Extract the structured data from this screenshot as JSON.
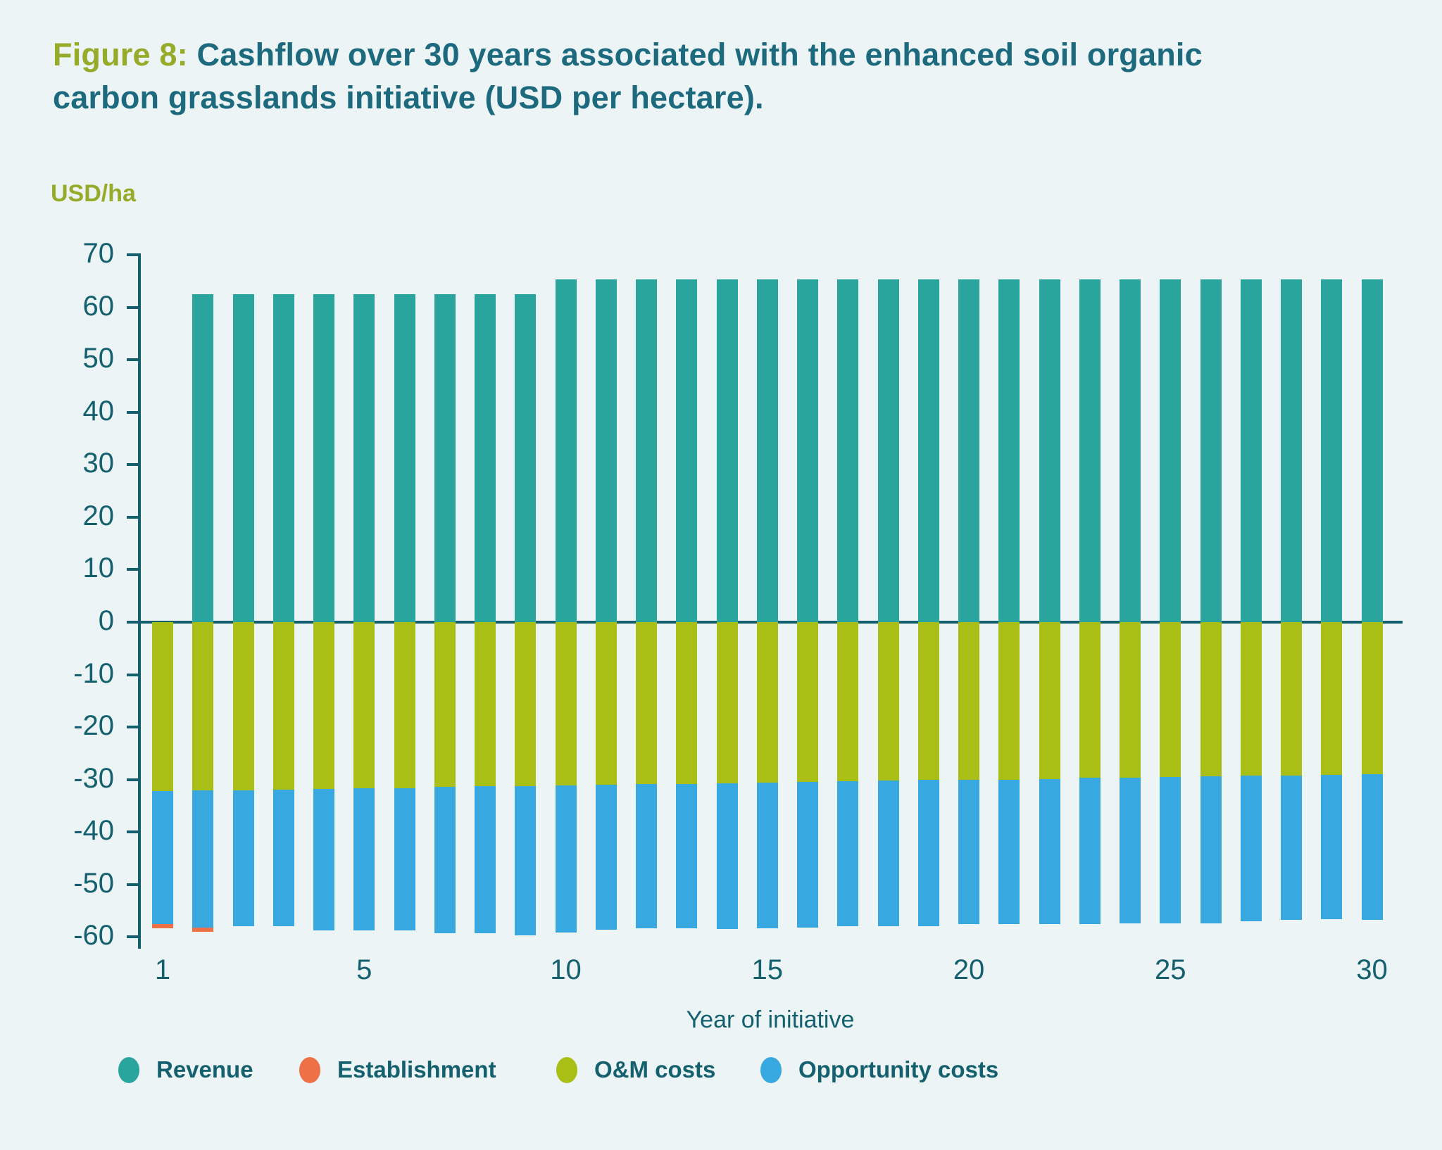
{
  "figure": {
    "label": "Figure 8:",
    "title_rest": " Cashflow over 30 years associated with the enhanced soil organic carbon grasslands initiative (USD per hectare).",
    "y_axis_unit": "USD/ha",
    "x_axis_label": "Year of initiative"
  },
  "colors": {
    "background": "#ecf4f5",
    "title_teal": "#1d6a7e",
    "accent_olive": "#96ab2a",
    "axis_text": "#14606f",
    "zero_line": "#135f6e",
    "revenue": "#29a59d",
    "establishment": "#ed7047",
    "om_costs": "#a9bf16",
    "opportunity_costs": "#38a8e0"
  },
  "chart_data": {
    "type": "bar",
    "stacked": true,
    "title": "Cashflow over 30 years associated with the enhanced soil organic carbon grasslands initiative (USD per hectare)",
    "ylabel": "USD/ha",
    "xlabel": "Year of initiative",
    "ylim": [
      -60,
      70
    ],
    "y_ticks": [
      70,
      60,
      50,
      40,
      30,
      20,
      10,
      0,
      -10,
      -20,
      -30,
      -40,
      -50,
      -60
    ],
    "n_bars": 31,
    "x_tick_labels": [
      "1",
      "5",
      "10",
      "15",
      "20",
      "25",
      "30"
    ],
    "x_tick_bar_positions": [
      1,
      6,
      11,
      16,
      21,
      26,
      31
    ],
    "grid": false,
    "legend_position": "bottom",
    "stack_order_below_zero": [
      "O&M costs",
      "Opportunity costs",
      "Establishment"
    ],
    "series": [
      {
        "name": "Revenue",
        "color": "#29a59d",
        "direction": "positive",
        "values": [
          0,
          62.5,
          62.5,
          62.5,
          62.5,
          62.5,
          62.5,
          62.5,
          62.5,
          62.5,
          65.3,
          65.3,
          65.3,
          65.3,
          65.3,
          65.3,
          65.3,
          65.3,
          65.3,
          65.3,
          65.3,
          65.3,
          65.3,
          65.3,
          65.3,
          65.3,
          65.3,
          65.3,
          65.3,
          65.3,
          65.3
        ]
      },
      {
        "name": "Establishment",
        "color": "#ed7047",
        "direction": "negative",
        "values": [
          0.8,
          0.8,
          0,
          0,
          0,
          0,
          0,
          0,
          0,
          0,
          0,
          0,
          0,
          0,
          0,
          0,
          0,
          0,
          0,
          0,
          0,
          0,
          0,
          0,
          0,
          0,
          0,
          0,
          0,
          0,
          0
        ]
      },
      {
        "name": "O&M costs",
        "color": "#a9bf16",
        "direction": "negative",
        "values": [
          32.2,
          32.1,
          32.0,
          31.9,
          31.8,
          31.7,
          31.6,
          31.4,
          31.3,
          31.2,
          31.1,
          31.0,
          30.9,
          30.8,
          30.7,
          30.6,
          30.4,
          30.3,
          30.2,
          30.1,
          30.1,
          30.0,
          29.9,
          29.7,
          29.6,
          29.5,
          29.4,
          29.3,
          29.2,
          29.1,
          29.0
        ]
      },
      {
        "name": "Opportunity costs",
        "color": "#38a8e0",
        "direction": "negative",
        "values": [
          25.4,
          26.1,
          26.0,
          26.1,
          26.9,
          27.0,
          27.1,
          27.9,
          28.0,
          28.5,
          28.1,
          27.6,
          27.5,
          27.6,
          27.8,
          27.8,
          27.8,
          27.7,
          27.8,
          27.9,
          27.5,
          27.6,
          27.7,
          27.9,
          27.8,
          27.9,
          28.0,
          27.7,
          27.6,
          27.5,
          27.7
        ]
      }
    ],
    "legend": [
      "Revenue",
      "Establishment",
      "O&M costs",
      "Opportunity costs"
    ]
  }
}
